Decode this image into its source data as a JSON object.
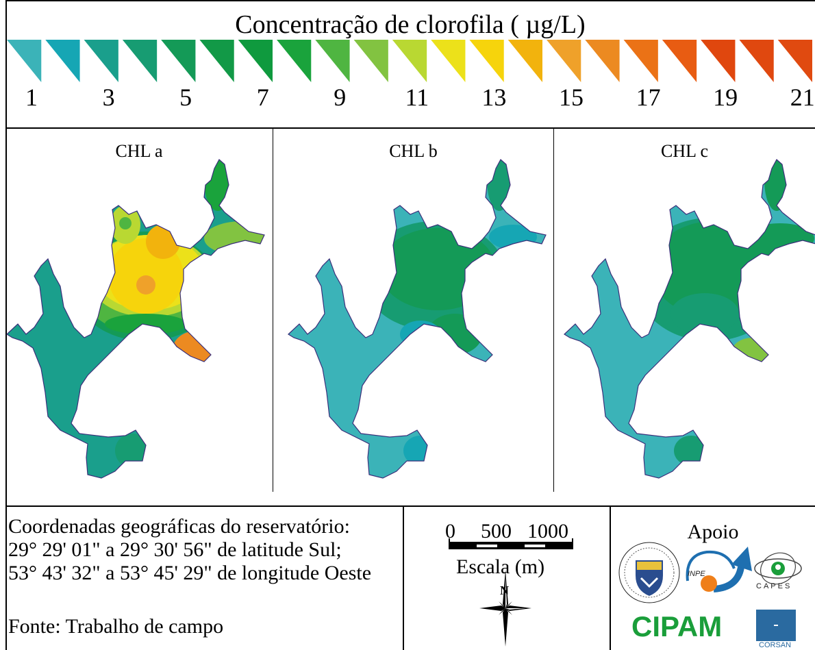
{
  "legend": {
    "title": "Concentração de clorofila ( µg/L)",
    "ticks": [
      "1",
      "3",
      "5",
      "7",
      "9",
      "11",
      "13",
      "15",
      "17",
      "19",
      "21"
    ],
    "colors": [
      "#3bb3b8",
      "#16a6b4",
      "#1a9f8c",
      "#179c72",
      "#149a57",
      "#129947",
      "#0f9a3e",
      "#1aa33c",
      "#4fb541",
      "#82c341",
      "#b9d832",
      "#ece11a",
      "#f6d40c",
      "#f2b30d",
      "#efa12a",
      "#ec8a21",
      "#eb7216",
      "#e85c12",
      "#e0470e",
      "#e0480f",
      "#e04a10"
    ]
  },
  "panels": [
    {
      "title": "CHL a"
    },
    {
      "title": "CHL b"
    },
    {
      "title": "CHL c"
    }
  ],
  "coords": {
    "line1": "Coordenadas geográficas do reservatório:",
    "line2": "29° 29' 01\" a 29° 30' 56\" de latitude Sul;",
    "line3": "53° 43' 32\" a 53° 45' 29\" de longitude Oeste",
    "source": "Fonte: Trabalho de campo"
  },
  "scale": {
    "ticks": [
      "0",
      "500",
      "1000"
    ],
    "label": "Escala (m)",
    "north": "N"
  },
  "apoio": {
    "title": "Apoio",
    "cipam": "CIPAM",
    "corsan": "CORSAN",
    "capes": "CAPES",
    "inpe": "INPE"
  }
}
